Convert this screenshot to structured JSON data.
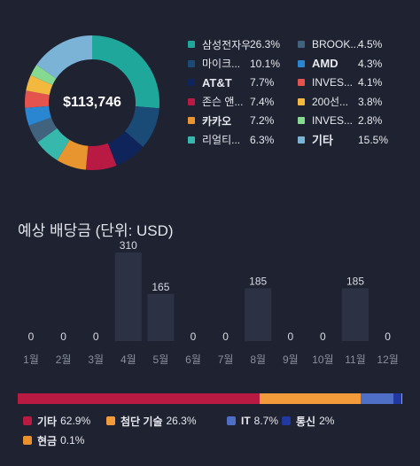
{
  "total_value": "$113,746",
  "holdings": [
    {
      "name": "삼성전자우",
      "pct": "26.3%",
      "value": 26.3,
      "color": "#1fa79c"
    },
    {
      "name": "마이크...",
      "pct": "10.1%",
      "value": 10.1,
      "color": "#1a4a76"
    },
    {
      "name": "AT&T",
      "pct": "7.7%",
      "value": 7.7,
      "color": "#0f245a"
    },
    {
      "name": "존슨 앤...",
      "pct": "7.4%",
      "value": 7.4,
      "color": "#b91a43"
    },
    {
      "name": "카카오",
      "pct": "7.2%",
      "value": 7.2,
      "color": "#e8952f"
    },
    {
      "name": "리얼티...",
      "pct": "6.3%",
      "value": 6.3,
      "color": "#36b8ac"
    },
    {
      "name": "BROOK...",
      "pct": "4.5%",
      "value": 4.5,
      "color": "#41637e"
    },
    {
      "name": "AMD",
      "pct": "4.3%",
      "value": 4.3,
      "color": "#2a86d1"
    },
    {
      "name": "INVES...",
      "pct": "4.1%",
      "value": 4.1,
      "color": "#e4534e"
    },
    {
      "name": "200선...",
      "pct": "3.8%",
      "value": 3.8,
      "color": "#f3b93e"
    },
    {
      "name": "INVES...",
      "pct": "2.8%",
      "value": 2.8,
      "color": "#86d990"
    },
    {
      "name": "기타",
      "pct": "15.5%",
      "value": 15.5,
      "color": "#7ab3d6"
    }
  ],
  "dividend_title": "예상 배당금 (단위: USD)",
  "chart_data": {
    "type": "bar",
    "categories": [
      "1월",
      "2월",
      "3월",
      "4월",
      "5월",
      "6월",
      "7월",
      "8월",
      "9월",
      "10월",
      "11월",
      "12월"
    ],
    "values": [
      0,
      0,
      0,
      310,
      165,
      0,
      0,
      185,
      0,
      0,
      185,
      0
    ],
    "value_labels": [
      "0",
      "0",
      "0",
      "310",
      "165",
      "0",
      "0",
      "185",
      "0",
      "0",
      "185",
      "0"
    ],
    "title": "예상 배당금 (단위: USD)",
    "ylim": [
      0,
      310
    ],
    "grid": false,
    "bar_color": "#2c3144"
  },
  "sectors": [
    {
      "name": "기타",
      "pct": "62.9%",
      "value": 62.9,
      "color": "#b81a42"
    },
    {
      "name": "첨단 기술",
      "pct": "26.3%",
      "value": 26.3,
      "color": "#f39a3a"
    },
    {
      "name": "IT",
      "pct": "8.7%",
      "value": 8.7,
      "color": "#4f6fc6"
    },
    {
      "name": "통신",
      "pct": "2%",
      "value": 2.0,
      "color": "#2038a0"
    },
    {
      "name": "현금",
      "pct": "0.1%",
      "value": 0.1,
      "color": "#e8912e"
    }
  ]
}
